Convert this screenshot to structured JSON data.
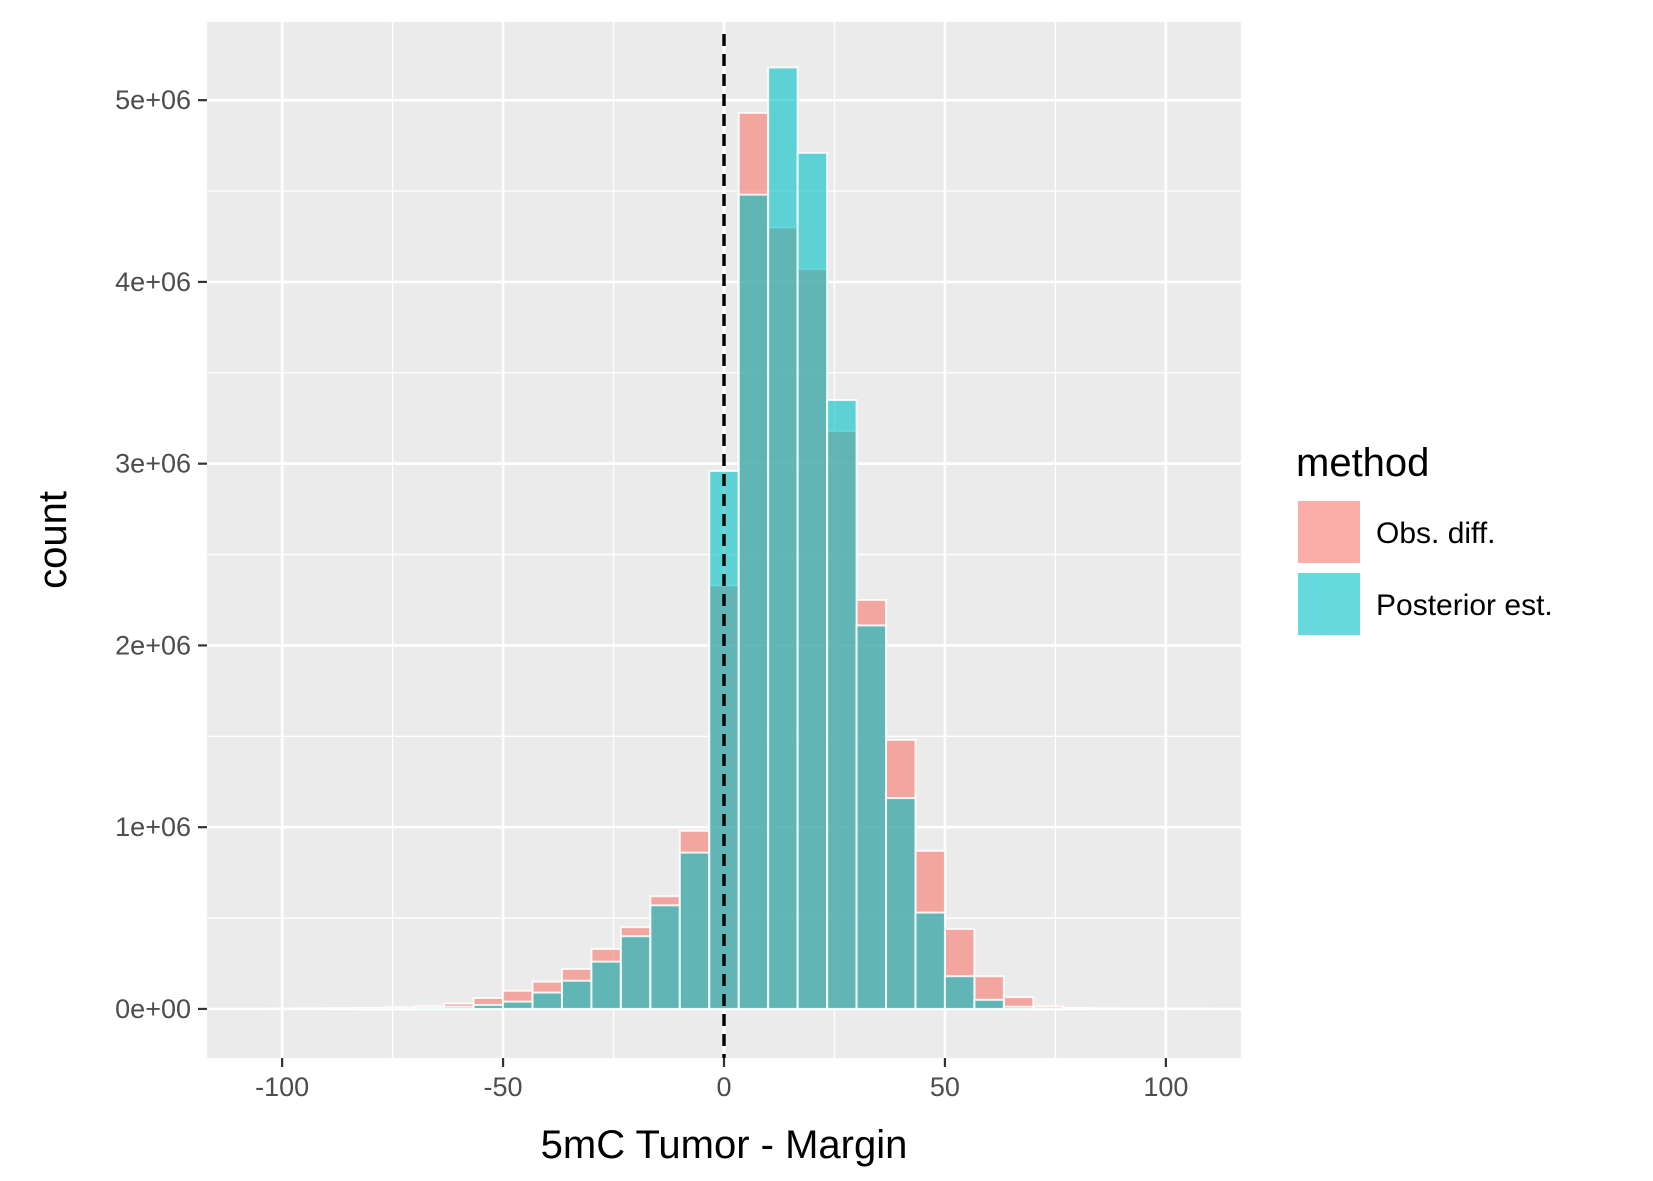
{
  "chart_data": {
    "type": "bar",
    "subtype": "overlaid-histogram",
    "xlabel": "5mC Tumor - Margin",
    "ylabel": "count",
    "xlim": [
      -117,
      117
    ],
    "ylim": [
      -270000,
      5430000
    ],
    "x_ticks": [
      -100,
      -50,
      0,
      50,
      100
    ],
    "x_tick_labels": [
      "-100",
      "-50",
      "0",
      "50",
      "100"
    ],
    "y_ticks": [
      0,
      1000000,
      2000000,
      3000000,
      4000000,
      5000000
    ],
    "y_tick_labels": [
      "0e+00",
      "1e+06",
      "2e+06",
      "3e+06",
      "4e+06",
      "5e+06"
    ],
    "grid": true,
    "reference_line": {
      "x": 0,
      "style": "dashed",
      "color": "#000000"
    },
    "bin_width": 6.67,
    "bin_centers": [
      -100,
      -93.33,
      -86.67,
      -80,
      -73.33,
      -66.67,
      -60,
      -53.33,
      -46.67,
      -40,
      -33.33,
      -26.67,
      -20,
      -13.33,
      -6.67,
      0,
      6.67,
      13.33,
      20,
      26.67,
      33.33,
      40,
      46.67,
      53.33,
      60,
      66.67,
      73.33,
      80,
      86.67,
      93.33,
      100,
      106.67
    ],
    "legend": {
      "title": "method",
      "position": "right"
    },
    "series": [
      {
        "name": "Obs. diff.",
        "color": "#F8766D",
        "values": [
          2000,
          3000,
          4000,
          6000,
          9000,
          15000,
          30000,
          60000,
          100000,
          150000,
          220000,
          330000,
          450000,
          620000,
          980000,
          2330000,
          4930000,
          4300000,
          4070000,
          3180000,
          2250000,
          1480000,
          870000,
          440000,
          180000,
          65000,
          15000,
          6000,
          3000,
          2000,
          1500,
          1000
        ]
      },
      {
        "name": "Posterior est.",
        "color": "#00BFC4",
        "values": [
          500,
          800,
          1000,
          2000,
          3000,
          6000,
          12000,
          22000,
          40000,
          90000,
          155000,
          260000,
          400000,
          570000,
          860000,
          2960000,
          4480000,
          5180000,
          4710000,
          3350000,
          2110000,
          1160000,
          530000,
          180000,
          50000,
          12000,
          3000,
          1000,
          500,
          300,
          200,
          100
        ]
      }
    ]
  }
}
